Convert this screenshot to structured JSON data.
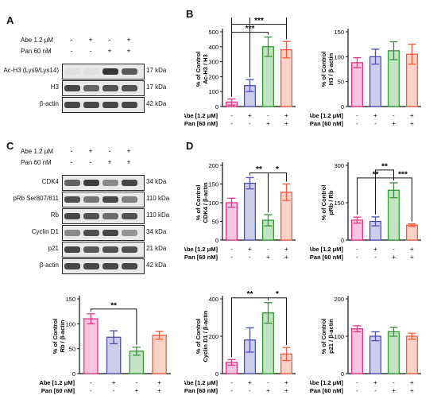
{
  "panel_letters": {
    "A": "A",
    "B": "B",
    "C": "C",
    "D": "D"
  },
  "blot_A": {
    "treatments": [
      {
        "label": "Abe 1.2 μM",
        "signs": [
          "-",
          "+",
          "-",
          "+"
        ]
      },
      {
        "label": "Pan 60 nM",
        "signs": [
          "-",
          "-",
          "+",
          "+"
        ]
      }
    ],
    "rows": [
      {
        "label": "Ac-H3 (Lys9/Lys14)",
        "kda": "17 kDa",
        "intensities": [
          0.05,
          0.05,
          0.95,
          0.75
        ]
      },
      {
        "label": "H3",
        "kda": "17 kDa",
        "intensities": [
          0.85,
          0.7,
          0.8,
          0.8
        ]
      },
      {
        "label": "β-actin",
        "kda": "42 kDa",
        "intensities": [
          0.85,
          0.85,
          0.85,
          0.85
        ]
      }
    ]
  },
  "blot_C": {
    "treatments": [
      {
        "label": "Abe 1.2 μM",
        "signs": [
          "-",
          "+",
          "-",
          "+"
        ]
      },
      {
        "label": "Pan 60 nM",
        "signs": [
          "-",
          "-",
          "+",
          "+"
        ]
      }
    ],
    "rows": [
      {
        "label": "CDK4",
        "kda": "34 kDa",
        "intensities": [
          0.7,
          0.9,
          0.5,
          0.85
        ]
      },
      {
        "label": "pRb Ser807/811",
        "kda": "110 kDa",
        "intensities": [
          0.8,
          0.6,
          0.85,
          0.55
        ]
      },
      {
        "label": "Rb",
        "kda": "110 kDa",
        "intensities": [
          0.85,
          0.8,
          0.65,
          0.8
        ]
      },
      {
        "label": "Cyclin D1",
        "kda": "34 kDa",
        "intensities": [
          0.5,
          0.8,
          0.85,
          0.45
        ]
      },
      {
        "label": "p21",
        "kda": "21 kDa",
        "intensities": [
          0.85,
          0.75,
          0.8,
          0.8
        ]
      },
      {
        "label": "β-actin",
        "kda": "42 kDa",
        "intensities": [
          0.85,
          0.85,
          0.85,
          0.85
        ]
      }
    ]
  },
  "colors": {
    "pink": "#e8308a",
    "blue": "#4b4bb8",
    "green": "#2e9a2e",
    "orange": "#f05a3c"
  },
  "chart_data": [
    {
      "id": "achthree",
      "type": "bar",
      "ylabel": "% of Control Ac-H3 / H3",
      "yticks": [
        0,
        100,
        200,
        300,
        400,
        500
      ],
      "ylim": [
        0,
        500
      ],
      "values": [
        30,
        140,
        400,
        380
      ],
      "errors": [
        20,
        40,
        65,
        55
      ],
      "sig": [
        {
          "text": "***",
          "from": 0,
          "to": 2,
          "level": 0
        },
        {
          "text": "***",
          "from": 0,
          "to": 3,
          "level": 1
        },
        {
          "text": "*",
          "from": 1,
          "to": 3,
          "level": 2
        },
        {
          "text": "*",
          "from": 0,
          "to": 3,
          "level": 3
        }
      ]
    },
    {
      "id": "hthree",
      "type": "bar",
      "ylabel": "% of Control H3 / β-actin",
      "yticks": [
        0,
        50,
        100,
        150
      ],
      "ylim": [
        0,
        150
      ],
      "values": [
        88,
        100,
        112,
        105
      ],
      "errors": [
        10,
        15,
        18,
        20
      ],
      "sig": []
    },
    {
      "id": "cdkfour",
      "type": "bar",
      "ylabel": "% of Control CDK4 / β-actin",
      "yticks": [
        0,
        50,
        100,
        150,
        200
      ],
      "ylim": [
        0,
        200
      ],
      "values": [
        100,
        152,
        53,
        128
      ],
      "errors": [
        12,
        15,
        15,
        22
      ],
      "sig": [
        {
          "text": "**",
          "from": 1,
          "to": 2,
          "level": 0
        },
        {
          "text": "*",
          "from": 2,
          "to": 3,
          "level": 0
        }
      ]
    },
    {
      "id": "prb",
      "type": "bar",
      "ylabel": "% of Control pRb / Rb",
      "yticks": [
        0,
        150,
        300
      ],
      "ylim": [
        0,
        300
      ],
      "values": [
        80,
        75,
        200,
        60
      ],
      "errors": [
        12,
        18,
        30,
        5
      ],
      "sig": [
        {
          "text": "**",
          "from": 0,
          "to": 2,
          "level": 0
        },
        {
          "text": "***",
          "from": 2,
          "to": 3,
          "level": 0
        },
        {
          "text": "**",
          "from": 1,
          "to": 2,
          "level": 1
        }
      ]
    },
    {
      "id": "rb",
      "type": "bar",
      "ylabel": "% of Control Rb / β-actin",
      "yticks": [
        0,
        50,
        100,
        150
      ],
      "ylim": [
        0,
        150
      ],
      "values": [
        110,
        73,
        45,
        77
      ],
      "errors": [
        10,
        13,
        8,
        8
      ],
      "sig": [
        {
          "text": "**",
          "from": 0,
          "to": 2,
          "level": 0
        }
      ]
    },
    {
      "id": "cyclind",
      "type": "bar",
      "ylabel": "% of Control Cyclin D1 / β-actin",
      "yticks": [
        0,
        200,
        400
      ],
      "ylim": [
        0,
        400
      ],
      "values": [
        60,
        180,
        325,
        105
      ],
      "errors": [
        15,
        65,
        55,
        35
      ],
      "sig": [
        {
          "text": "**",
          "from": 0,
          "to": 2,
          "level": 0
        },
        {
          "text": "*",
          "from": 2,
          "to": 3,
          "level": 0
        }
      ]
    },
    {
      "id": "ptwentyone",
      "type": "bar",
      "ylabel": "% of Control p21 / β-actin",
      "yticks": [
        0,
        100,
        200
      ],
      "ylim": [
        0,
        200
      ],
      "values": [
        120,
        100,
        112,
        100
      ],
      "errors": [
        8,
        12,
        12,
        8
      ],
      "sig": []
    }
  ],
  "treatment_rows": [
    {
      "label": "Abe [1.2 μM]",
      "signs": [
        "-",
        "+",
        "-",
        "+"
      ]
    },
    {
      "label": "Pan [60 nM]",
      "signs": [
        "-",
        "-",
        "+",
        "+"
      ]
    }
  ]
}
